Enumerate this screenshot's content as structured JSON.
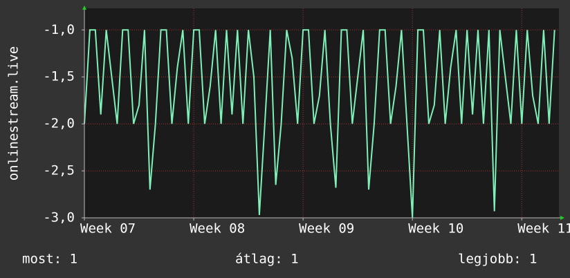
{
  "chart_data": {
    "type": "line",
    "y_label": "onlinestream.live",
    "x": [
      7.0,
      7.05,
      7.1,
      7.15,
      7.2,
      7.25,
      7.3,
      7.35,
      7.4,
      7.45,
      7.5,
      7.55,
      7.6,
      7.65,
      7.7,
      7.75,
      7.8,
      7.85,
      7.9,
      7.95,
      8.0,
      8.05,
      8.1,
      8.15,
      8.2,
      8.25,
      8.3,
      8.35,
      8.4,
      8.45,
      8.5,
      8.55,
      8.6,
      8.65,
      8.7,
      8.75,
      8.8,
      8.85,
      8.9,
      8.95,
      9.0,
      9.05,
      9.1,
      9.15,
      9.2,
      9.25,
      9.3,
      9.35,
      9.4,
      9.45,
      9.5,
      9.55,
      9.6,
      9.65,
      9.7,
      9.75,
      9.8,
      9.85,
      9.9,
      9.95,
      10.0,
      10.05,
      10.1,
      10.15,
      10.2,
      10.25,
      10.3,
      10.35,
      10.4,
      10.45,
      10.5,
      10.55,
      10.6,
      10.65,
      10.7,
      10.75,
      10.8,
      10.85,
      10.9,
      10.95,
      11.0,
      11.05,
      11.1,
      11.15,
      11.2,
      11.25,
      11.3
    ],
    "series": [
      {
        "name": "onlinestream.live",
        "color": "#7ff0b8",
        "values": [
          -2,
          -1,
          -1,
          -1.9,
          -1,
          -1.5,
          -2,
          -1,
          -1,
          -2,
          -1.8,
          -1,
          -2.7,
          -2,
          -1,
          -1,
          -2,
          -1.4,
          -1,
          -2,
          -1,
          -1,
          -2,
          -1.6,
          -1,
          -2,
          -1,
          -1.9,
          -1,
          -2,
          -1,
          -1.5,
          -2.97,
          -2,
          -1,
          -2.65,
          -2,
          -1,
          -1.3,
          -2,
          -1,
          -1,
          -2,
          -1.7,
          -1,
          -2,
          -2.68,
          -1,
          -1,
          -2,
          -1.5,
          -1,
          -2.7,
          -2,
          -1,
          -1,
          -2,
          -1.6,
          -1,
          -2,
          -3.0,
          -1,
          -1,
          -2,
          -1.8,
          -1,
          -2,
          -1.4,
          -1,
          -2,
          -1,
          -1.9,
          -1,
          -2,
          -1,
          -2.93,
          -1,
          -1.5,
          -2,
          -1,
          -2,
          -1,
          -1.7,
          -2,
          -1,
          -2,
          -1
        ]
      }
    ],
    "xlim": [
      7,
      11.34
    ],
    "xticks": [
      {
        "value": 7,
        "label": "Week 07"
      },
      {
        "value": 8,
        "label": "Week 08"
      },
      {
        "value": 9,
        "label": "Week 09"
      },
      {
        "value": 10,
        "label": "Week 10"
      },
      {
        "value": 11,
        "label": "Week 11"
      }
    ],
    "ylim": [
      -3.0,
      -0.77
    ],
    "yticks": [
      {
        "value": -3.0,
        "label": "-3,0"
      },
      {
        "value": -2.5,
        "label": "-2,5"
      },
      {
        "value": -2.0,
        "label": "-2,0"
      },
      {
        "value": -1.5,
        "label": "-1,5"
      },
      {
        "value": -1.0,
        "label": "-1,0"
      }
    ],
    "grid": true,
    "legend": [
      "most: 1",
      "átlag: 1",
      "legjobb: 1"
    ]
  }
}
